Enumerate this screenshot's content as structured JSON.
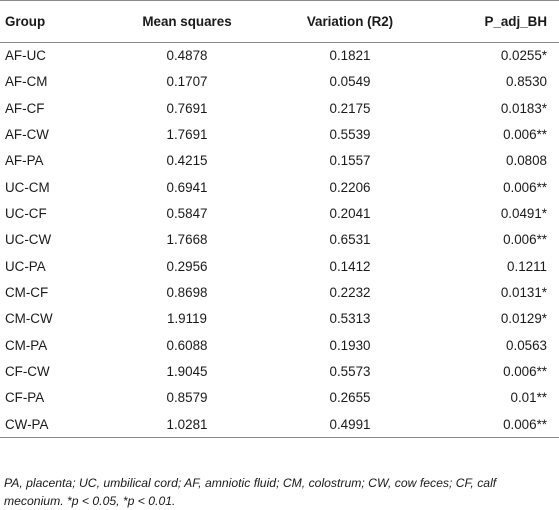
{
  "table": {
    "headers": [
      "Group",
      "Mean squares",
      "Variation (R2)",
      "P_adj_BH"
    ],
    "rows": [
      [
        "AF-UC",
        "0.4878",
        "0.1821",
        "0.0255*"
      ],
      [
        "AF-CM",
        "0.1707",
        "0.0549",
        "0.8530"
      ],
      [
        "AF-CF",
        "0.7691",
        "0.2175",
        "0.0183*"
      ],
      [
        "AF-CW",
        "1.7691",
        "0.5539",
        "0.006**"
      ],
      [
        "AF-PA",
        "0.4215",
        "0.1557",
        "0.0808"
      ],
      [
        "UC-CM",
        "0.6941",
        "0.2206",
        "0.006**"
      ],
      [
        "UC-CF",
        "0.5847",
        "0.2041",
        "0.0491*"
      ],
      [
        "UC-CW",
        "1.7668",
        "0.6531",
        "0.006**"
      ],
      [
        "UC-PA",
        "0.2956",
        "0.1412",
        "0.1211"
      ],
      [
        "CM-CF",
        "0.8698",
        "0.2232",
        "0.0131*"
      ],
      [
        "CM-CW",
        "1.9119",
        "0.5313",
        "0.0129*"
      ],
      [
        "CM-PA",
        "0.6088",
        "0.1930",
        "0.0563"
      ],
      [
        "CF-CW",
        "1.9045",
        "0.5573",
        "0.006**"
      ],
      [
        "CF-PA",
        "0.8579",
        "0.2655",
        "0.01**"
      ],
      [
        "CW-PA",
        "1.0281",
        "0.4991",
        "0.006**"
      ]
    ]
  },
  "footnote": "PA, placenta; UC, umbilical cord; AF, amniotic fluid; CM, colostrum; CW, cow feces; CF, calf meconium. *p < 0.05, *p < 0.01."
}
